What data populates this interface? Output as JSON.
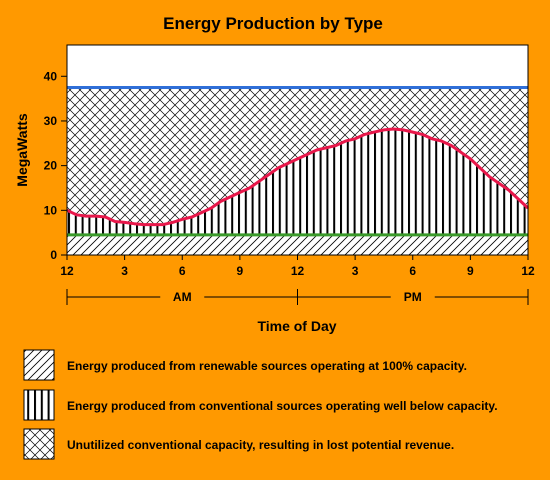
{
  "chart_data": {
    "type": "area",
    "title": "Energy Production by Type",
    "xlabel": "Time of Day",
    "ylabel": "MegaWatts",
    "x_ticks": [
      "12",
      "3",
      "6",
      "9",
      "12",
      "3",
      "6",
      "9",
      "12"
    ],
    "x_tick_hours": [
      0,
      3,
      6,
      9,
      12,
      15,
      18,
      21,
      24
    ],
    "y_ticks": [
      0,
      10,
      20,
      30,
      40
    ],
    "ylim": [
      0,
      47
    ],
    "xlim": [
      0,
      24
    ],
    "periods": [
      {
        "label": "AM",
        "start": 0,
        "end": 12
      },
      {
        "label": "PM",
        "start": 12,
        "end": 24
      }
    ],
    "grid": false,
    "series": [
      {
        "name": "Energy produced from renewable sources operating at 100% capacity.",
        "pattern": "diagonal",
        "color": "#3A9A2A",
        "x": [
          0,
          24
        ],
        "values": [
          4.5,
          4.5
        ]
      },
      {
        "name": "Energy produced from conventional sources operating well below capacity.",
        "pattern": "vertical",
        "color": "#E8174A",
        "x": [
          0,
          0.5,
          1,
          1.5,
          2,
          2.5,
          3,
          3.5,
          4,
          4.5,
          5,
          5.5,
          6,
          6.5,
          7,
          7.5,
          8,
          8.5,
          9,
          9.5,
          10,
          10.5,
          11,
          11.5,
          12,
          12.5,
          13,
          13.5,
          14,
          14.5,
          15,
          15.5,
          16,
          16.5,
          17,
          17.5,
          18,
          18.5,
          19,
          19.5,
          20,
          20.5,
          21,
          21.5,
          22,
          22.5,
          23,
          23.5,
          24
        ],
        "values": [
          10,
          9,
          8.7,
          8.7,
          8.5,
          7.5,
          7.3,
          7,
          6.8,
          6.8,
          6.8,
          7.3,
          8,
          8.5,
          9.5,
          10.5,
          12,
          13,
          14,
          15,
          16.5,
          18,
          19.5,
          20.5,
          21.5,
          22.5,
          23.5,
          24,
          24.5,
          25.5,
          26,
          27,
          27.5,
          28,
          28.2,
          28,
          27.5,
          27,
          26,
          25.5,
          24.5,
          23,
          21.5,
          19.5,
          17.5,
          16,
          14.5,
          12.5,
          10.5
        ]
      },
      {
        "name": "Unutilized conventional capacity, resulting in lost potential revenue.",
        "pattern": "crosshatch",
        "color": "#2F6FD8",
        "x": [
          0,
          24
        ],
        "values": [
          37.5,
          37.5
        ]
      }
    ]
  }
}
